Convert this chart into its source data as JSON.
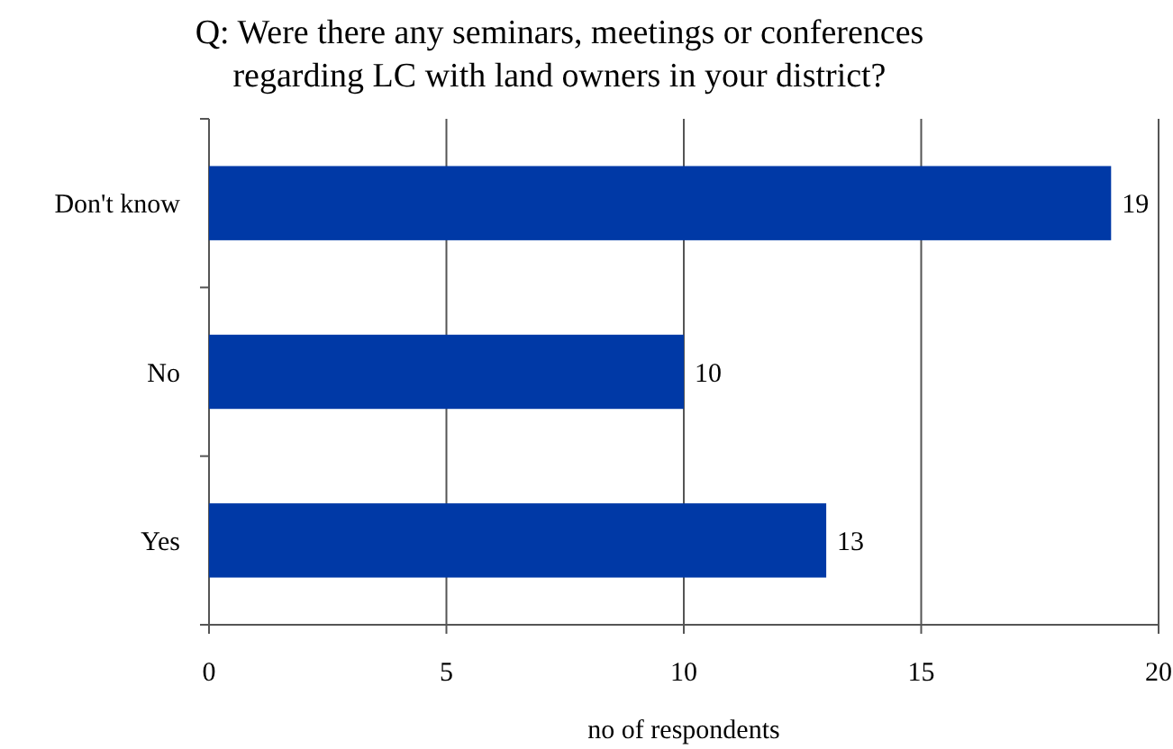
{
  "chart_data": {
    "type": "bar",
    "orientation": "horizontal",
    "title": "Q: Were there any seminars, meetings or conferences regarding LC with land owners in your district?",
    "xlabel": "no of respondents",
    "categories": [
      "Don't know",
      "No",
      "Yes"
    ],
    "values": [
      19,
      10,
      13
    ],
    "color": "#0039a6",
    "xlim": [
      0,
      20
    ],
    "xticks": [
      0,
      5,
      10,
      15,
      20
    ],
    "grid": "x",
    "data_labels": true
  }
}
